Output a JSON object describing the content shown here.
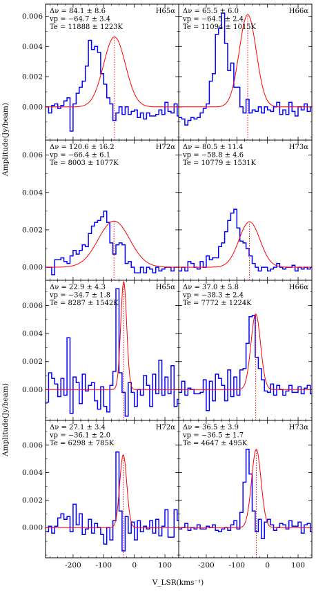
{
  "figure": {
    "ylabel": "Amplitude(Jy/beam)",
    "xlabel": "V_LSR(kms⁻¹)",
    "xlim": [
      -290,
      145
    ],
    "xticks": [
      -200,
      -100,
      0,
      100
    ],
    "xtick_labels": [
      "-200",
      "-100",
      "0",
      "100"
    ],
    "yticks": [
      0.0,
      0.002,
      0.004,
      0.006
    ],
    "ytick_labels": [
      "0.000",
      "0.002",
      "0.004",
      "0.006"
    ],
    "colors": {
      "data": "#0000ff",
      "fit": "#ff0000",
      "peak_line": "#ff0000"
    }
  },
  "chart_data": [
    {
      "type": "line",
      "line": "H65α",
      "annotation": [
        "Δν = 84.1 ± 8.6",
        "vp = −64.7 ± 3.4",
        "Te = 11888 ± 1223K"
      ],
      "ylim": [
        -0.0022,
        0.0068
      ],
      "fit": {
        "amp": 0.00463,
        "center": -64.7,
        "fwhm": 84.1
      },
      "series": [
        {
          "x0": -285,
          "dx": 10,
          "values": [
            0.0,
            -0.0004,
            0.0001,
            0.0002,
            -0.0001,
            0.0001,
            0.0004,
            0.0006,
            -0.0016,
            0.0002,
            0.0009,
            0.0013,
            0.0017,
            0.0027,
            0.0044,
            0.0038,
            0.004,
            0.0036,
            0.0022,
            0.0015,
            0.0006,
            0.0002,
            -0.0009,
            -0.0004,
            0.0,
            -0.0005,
            0.0,
            -0.0005,
            -0.0003,
            -0.0002,
            -0.0007,
            -0.0004,
            -0.0008,
            -0.0004,
            -0.0006,
            -0.0006,
            -0.0005,
            -0.0002,
            -0.0005,
            0.0003,
            -0.0003,
            -0.0004,
            0.0002,
            -0.0006
          ]
        }
      ]
    },
    {
      "type": "line",
      "line": "H66α",
      "annotation": [
        "Δν = 65.5 ± 6.0",
        "vp = −64.5 ± 2.4",
        "Te = 11094 ± 1015K"
      ],
      "ylim": [
        -0.0022,
        0.0068
      ],
      "fit": {
        "amp": 0.0061,
        "center": -64.5,
        "fwhm": 65.5
      },
      "series": [
        {
          "x0": -285,
          "dx": 10,
          "values": [
            -0.0007,
            -0.0008,
            -0.0012,
            -0.0009,
            -0.0007,
            -0.0008,
            -0.0007,
            -0.0004,
            -0.0001,
            0.0002,
            0.0017,
            0.0022,
            0.0048,
            0.0052,
            0.0062,
            0.0042,
            0.0024,
            0.0029,
            0.0013,
            0.0013,
            0.0,
            -0.0004,
            0.0005,
            -0.0004,
            -0.0002,
            -0.0003,
            0.0,
            -0.0004,
            0.0,
            -0.0002,
            -0.0003,
            0.0,
            0.0003,
            -0.0005,
            -0.0002,
            -0.0005,
            0.0003,
            -0.0003,
            -0.0006,
            0.0,
            -0.0002,
            0.0002,
            -0.0003,
            0.0
          ]
        }
      ]
    },
    {
      "type": "line",
      "line": "H72α",
      "annotation": [
        "Δν = 120.6 ± 16.2",
        "vp = −66.4 ± 6.1",
        "Te = 8003 ± 1077K"
      ],
      "ylim": [
        -0.0007,
        0.0068
      ],
      "fit": {
        "amp": 0.00247,
        "center": -66.4,
        "fwhm": 120.6
      },
      "series": [
        {
          "x0": -285,
          "dx": 10,
          "values": [
            0.0,
            0.0,
            -0.0004,
            0.0004,
            0.0004,
            0.0005,
            0.0003,
            0.0002,
            0.0006,
            0.0009,
            0.0007,
            0.0009,
            0.0012,
            0.0011,
            0.0018,
            0.0022,
            0.0024,
            0.0025,
            0.0027,
            0.003,
            0.0024,
            0.0013,
            0.0007,
            0.0012,
            0.0013,
            0.0012,
            0.0002,
            0.0003,
            0.0,
            -0.0003,
            -0.0003,
            0.0,
            -0.0003,
            0.0,
            -0.0001,
            -0.0003,
            0.0,
            -0.0002,
            -0.0001,
            0.0,
            0.0,
            -0.0002,
            0.0,
            0.0
          ]
        }
      ]
    },
    {
      "type": "line",
      "line": "H73α",
      "annotation": [
        "Δν = 80.5 ± 11.4",
        "vp = −58.8 ± 4.6",
        "Te = 10779 ± 1531K"
      ],
      "ylim": [
        -0.0007,
        0.0068
      ],
      "fit": {
        "amp": 0.00243,
        "center": -58.8,
        "fwhm": 80.5
      },
      "series": [
        {
          "x0": -285,
          "dx": 10,
          "values": [
            -0.0002,
            0.0,
            -0.0002,
            0.0003,
            0.0002,
            0.0,
            -0.0001,
            0.0003,
            0.0,
            0.0006,
            0.0004,
            0.0005,
            0.0005,
            0.0011,
            0.0013,
            0.0019,
            0.0025,
            0.0029,
            0.0031,
            0.0021,
            0.0014,
            0.0013,
            0.001,
            0.0006,
            0.0002,
            0.0,
            -0.0002,
            0.0,
            0.0,
            -0.0002,
            -0.0001,
            0.0,
            0.0002,
            0.0,
            -0.0001,
            0.0,
            0.0,
            0.0001,
            -0.0002,
            0.0,
            -0.0001,
            0.0,
            -0.0001,
            0.0
          ]
        }
      ]
    },
    {
      "type": "line",
      "line": "H65α",
      "annotation": [
        "Δν = 22.9 ± 4.3",
        "vp = −34.7 ± 1.8",
        "Te = 8287 ± 1542K"
      ],
      "ylim": [
        -0.0022,
        0.0078
      ],
      "fit": {
        "amp": 0.0077,
        "center": -34.7,
        "fwhm": 22.9
      },
      "series": [
        {
          "x0": -285,
          "dx": 10,
          "values": [
            -0.0009,
            0.0012,
            0.0008,
            0.0004,
            -0.0005,
            0.0008,
            -0.0004,
            0.0037,
            -0.0017,
            0.0009,
            0.0005,
            -0.001,
            0.0011,
            -0.0001,
            0.0003,
            0.0005,
            -0.0008,
            -0.0014,
            0.0002,
            -0.0012,
            -0.0016,
            0.0003,
            0.0013,
            0.0072,
            0.0012,
            -0.0002,
            -0.0019,
            0.0005,
            -0.0002,
            -0.0012,
            0.0,
            -0.0004,
            0.001,
            0.0003,
            -0.0012,
            0.0011,
            -0.0003,
            0.0021,
            -0.0004,
            0.0009,
            -0.0003,
            0.0017,
            -0.0012,
            -0.0007
          ]
        }
      ]
    },
    {
      "type": "line",
      "line": "H66α",
      "annotation": [
        "Δν = 37.0 ± 5.8",
        "vp = −38.3 ± 2.4",
        "Te = 7772 ± 1224K"
      ],
      "ylim": [
        -0.0022,
        0.0078
      ],
      "fit": {
        "amp": 0.0054,
        "center": -38.3,
        "fwhm": 37.0
      },
      "series": [
        {
          "x0": -285,
          "dx": 10,
          "values": [
            -0.0002,
            0.0006,
            -0.0004,
            0.0001,
            0.0,
            -0.0003,
            -0.0003,
            -0.0002,
            0.0007,
            -0.0015,
            0.0006,
            -0.0008,
            0.0011,
            0.0008,
            0.0003,
            -0.0008,
            0.0014,
            -0.0005,
            0.0009,
            -0.0004,
            0.0014,
            0.0015,
            0.0033,
            0.0052,
            0.0053,
            0.0023,
            0.0015,
            0.0007,
            -0.0001,
            -0.0002,
            0.0004,
            -0.0004,
            0.0003,
            0.0,
            -0.0004,
            -0.0001,
            0.0003,
            -0.0002,
            -0.0002,
            0.0002,
            -0.0003,
            0.0001,
            0.0003,
            -0.0003
          ]
        }
      ]
    },
    {
      "type": "line",
      "line": "H72α",
      "annotation": [
        "Δν = 27.1 ± 3.4",
        "vp = −36.1 ± 2.0",
        "Te = 6298 ± 785K"
      ],
      "ylim": [
        -0.0022,
        0.0078
      ],
      "fit": {
        "amp": 0.0053,
        "center": -36.1,
        "fwhm": 27.1
      },
      "series": [
        {
          "x0": -285,
          "dx": 10,
          "values": [
            -0.0003,
            0.0001,
            -0.0004,
            0.0001,
            0.0007,
            0.001,
            0.0006,
            0.0008,
            -0.0003,
            0.0017,
            0.0002,
            0.001,
            -0.0005,
            -0.0001,
            0.0006,
            -0.0004,
            0.0003,
            0.0,
            -0.0005,
            -0.0012,
            0.0,
            -0.0009,
            0.0005,
            0.0055,
            0.0012,
            -0.0017,
            0.0008,
            -0.0004,
            0.0004,
            -0.0009,
            0.0005,
            -0.0003,
            0.0001,
            -0.0001,
            0.0005,
            -0.0004,
            0.0006,
            -0.0006,
            0.0001,
            0.0013,
            -0.0007,
            -0.0007,
            0.0013,
            0.0005
          ]
        }
      ]
    },
    {
      "type": "line",
      "line": "H73α",
      "annotation": [
        "Δν = 36.5 ± 3.9",
        "vp = −36.5 ± 1.7",
        "Te = 4647 ± 495K"
      ],
      "ylim": [
        -0.0022,
        0.0078
      ],
      "fit": {
        "amp": 0.0057,
        "center": -36.5,
        "fwhm": 36.5
      },
      "series": [
        {
          "x0": -285,
          "dx": 10,
          "values": [
            -0.0001,
            0.0,
            0.0003,
            -0.0002,
            0.0,
            -0.0001,
            0.0002,
            -0.0001,
            -0.0001,
            0.0001,
            0.0,
            0.0002,
            -0.0002,
            -0.0003,
            -0.0001,
            0.0,
            -0.0002,
            0.0002,
            0.0005,
            -0.0001,
            0.0011,
            0.0033,
            0.0057,
            0.0039,
            0.0012,
            -0.0003,
            0.0006,
            -0.0008,
            0.0004,
            0.0006,
            0.0002,
            -0.0002,
            0.0,
            0.0003,
            0.0002,
            -0.0001,
            0.0005,
            0.0001,
            0.0001,
            0.0004,
            -0.0004,
            0.0002,
            0.0003,
            -0.0003
          ]
        }
      ]
    }
  ]
}
